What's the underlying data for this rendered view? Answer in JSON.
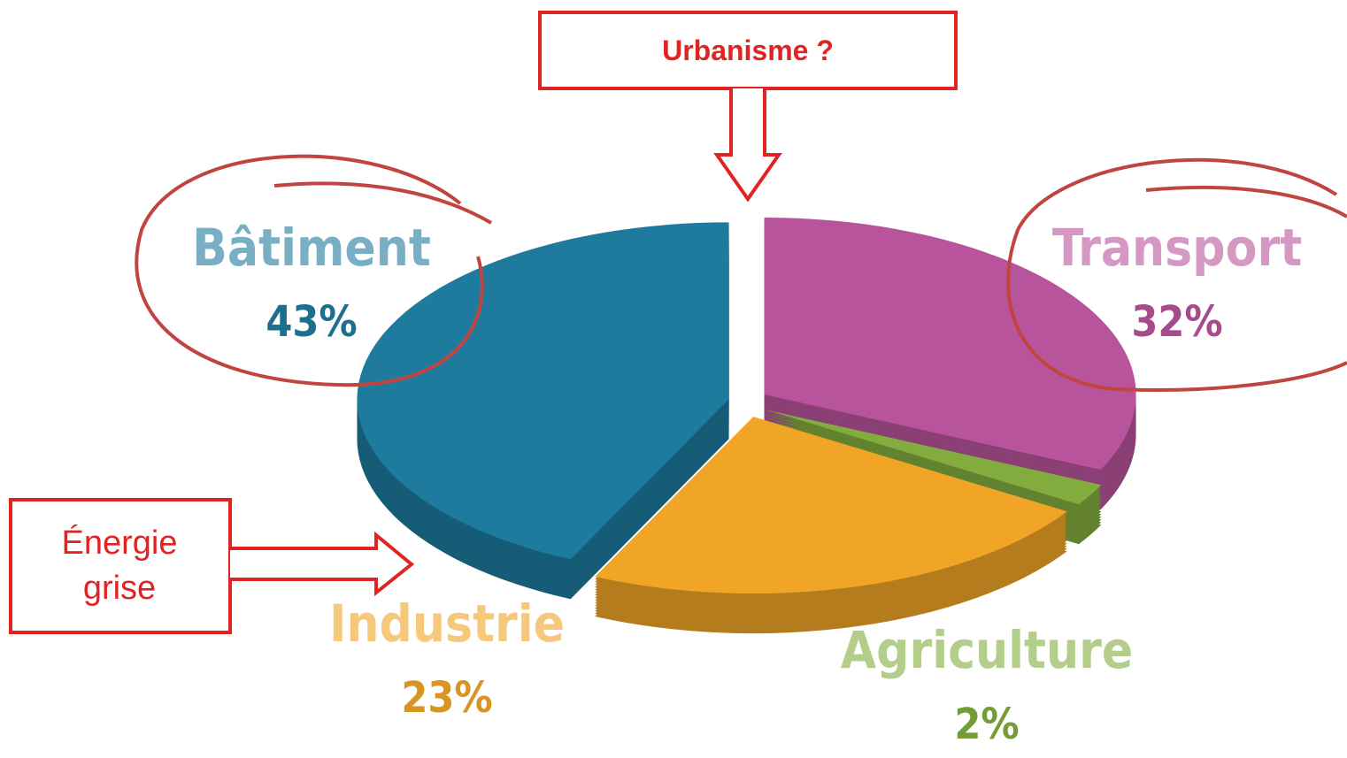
{
  "chart_data": {
    "type": "pie",
    "categories": [
      "Transport",
      "Agriculture",
      "Industrie",
      "Bâtiment"
    ],
    "values": [
      32,
      2,
      23,
      43
    ],
    "value_labels": [
      "32%",
      "2%",
      "23%",
      "43%"
    ],
    "colors": [
      "#b8549c",
      "#82ad3e",
      "#f0a526",
      "#1f7b9e"
    ],
    "annotations": [
      "Urbanisme ?",
      "Énergie grise"
    ]
  }
}
